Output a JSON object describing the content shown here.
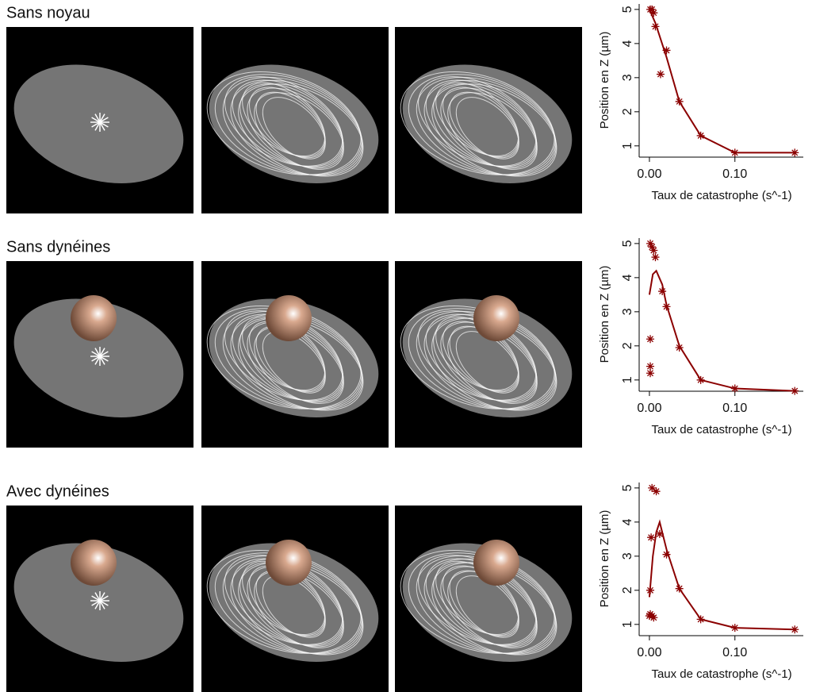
{
  "chart_data": [
    {
      "type": "scatter-line",
      "title": "Sans noyau",
      "xlabel": "Taux de catastrophe (s^-1)",
      "ylabel": "Position en Z (µm)",
      "color": "#8b0000",
      "xlim": [
        -0.012,
        0.18
      ],
      "ylim": [
        0.67,
        5.16
      ],
      "xticks": [
        {
          "value": 0,
          "label": "0.00"
        },
        {
          "value": 0.1,
          "label": "0.10"
        }
      ],
      "yticks": [
        1,
        2,
        3,
        4,
        5
      ],
      "series": [
        {
          "type": "scatter",
          "x": [
            0.001,
            0.003,
            0.005,
            0.007,
            0.02,
            0.013,
            0.035,
            0.06,
            0.1,
            0.17
          ],
          "values": [
            5.0,
            5.0,
            4.9,
            4.5,
            3.8,
            3.1,
            2.3,
            1.3,
            0.8,
            0.8
          ]
        },
        {
          "type": "line",
          "x": [
            0,
            0.007,
            0.02,
            0.035,
            0.06,
            0.1,
            0.17
          ],
          "values": [
            5.0,
            4.6,
            3.6,
            2.3,
            1.3,
            0.8,
            0.8
          ]
        }
      ]
    },
    {
      "type": "scatter-line",
      "title": "Sans dynéines",
      "xlabel": "Taux de catastrophe (s^-1)",
      "ylabel": "Position en Z (µm)",
      "color": "#8b0000",
      "xlim": [
        -0.012,
        0.18
      ],
      "ylim": [
        0.67,
        5.16
      ],
      "xticks": [
        {
          "value": 0,
          "label": "0.00"
        },
        {
          "value": 0.1,
          "label": "0.10"
        }
      ],
      "yticks": [
        1,
        2,
        3,
        4,
        5
      ],
      "series": [
        {
          "type": "scatter",
          "x": [
            0.001,
            0.003,
            0.005,
            0.007,
            0.001,
            0.001,
            0.001,
            0.015,
            0.02,
            0.035,
            0.06,
            0.1,
            0.17
          ],
          "values": [
            5.0,
            4.9,
            4.8,
            4.6,
            2.2,
            1.4,
            1.2,
            3.6,
            3.15,
            1.95,
            1.0,
            0.75,
            0.68
          ]
        },
        {
          "type": "line",
          "x": [
            0,
            0.004,
            0.008,
            0.015,
            0.02,
            0.035,
            0.06,
            0.1,
            0.17
          ],
          "values": [
            3.5,
            4.1,
            4.2,
            3.8,
            3.2,
            2.0,
            1.0,
            0.75,
            0.68
          ]
        }
      ]
    },
    {
      "type": "scatter-line",
      "title": "Avec dynéines",
      "xlabel": "Taux de catastrophe (s^-1)",
      "ylabel": "Position en Z (µm)",
      "color": "#8b0000",
      "xlim": [
        -0.012,
        0.18
      ],
      "ylim": [
        0.67,
        5.16
      ],
      "xticks": [
        {
          "value": 0,
          "label": "0.00"
        },
        {
          "value": 0.1,
          "label": "0.10"
        }
      ],
      "yticks": [
        1,
        2,
        3,
        4,
        5
      ],
      "series": [
        {
          "type": "scatter",
          "x": [
            0.003,
            0.008,
            0.002,
            0.012,
            0.02,
            0.035,
            0.06,
            0.1,
            0.17,
            0.001,
            0.001,
            0.003,
            0.005,
            0.0
          ],
          "values": [
            5.0,
            4.9,
            3.55,
            3.65,
            3.05,
            2.05,
            1.15,
            0.9,
            0.85,
            2.0,
            1.3,
            1.25,
            1.2,
            1.25
          ]
        },
        {
          "type": "line",
          "x": [
            0,
            0.004,
            0.008,
            0.012,
            0.02,
            0.035,
            0.06,
            0.1,
            0.17
          ],
          "values": [
            1.8,
            3.0,
            3.7,
            4.0,
            3.2,
            2.05,
            1.15,
            0.9,
            0.85
          ]
        }
      ]
    }
  ]
}
